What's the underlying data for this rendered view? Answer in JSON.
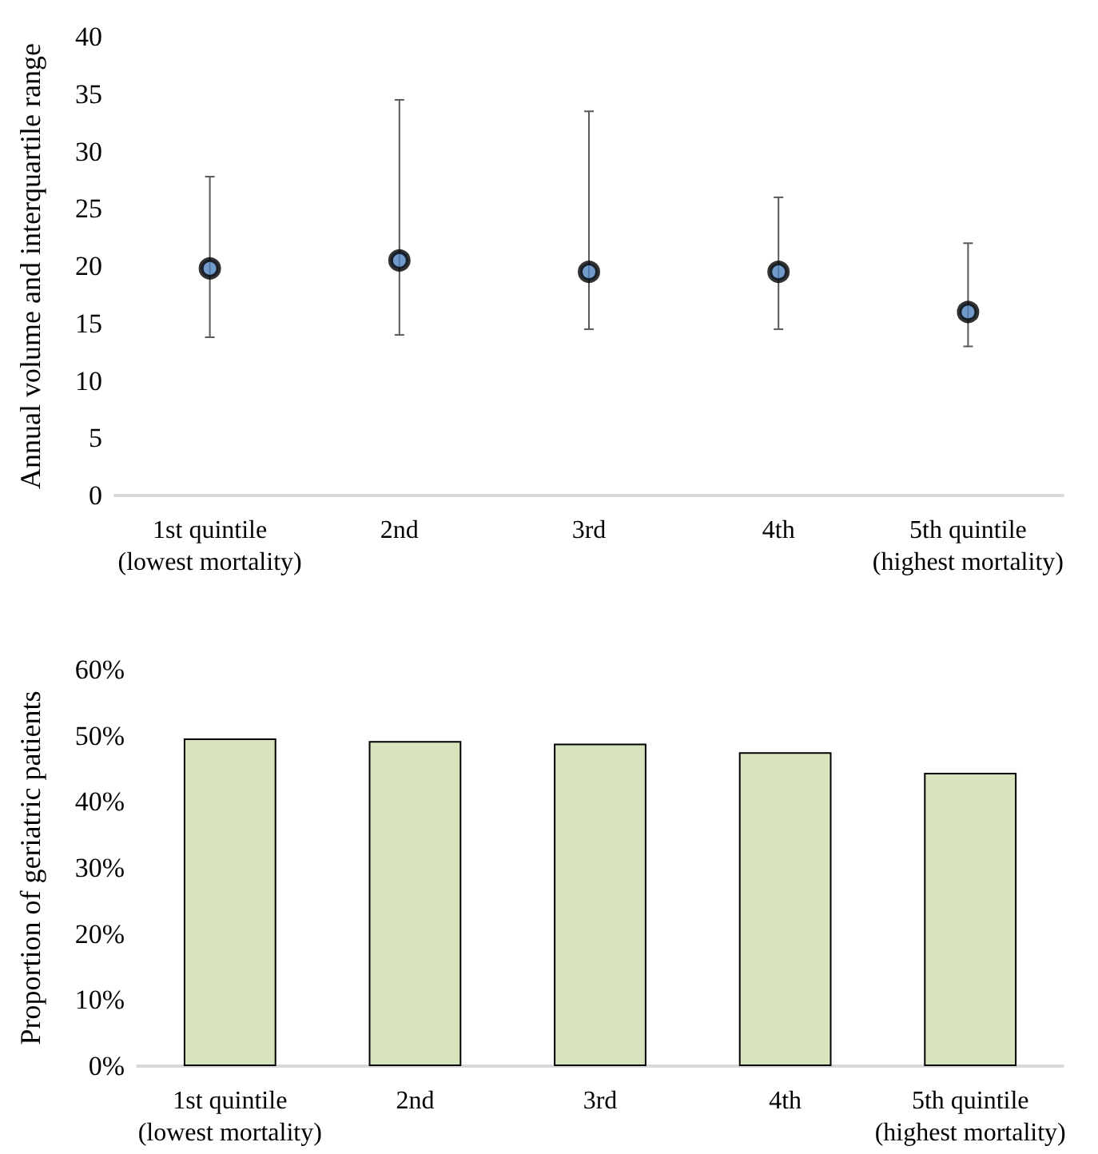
{
  "chart_data": [
    {
      "type": "scatter",
      "ylabel": "Annual volume and interquartile range",
      "categories": [
        "1st quintile\n(lowest mortality)",
        "2nd",
        "3rd",
        "4th",
        "5th quintile\n(highest mortality)"
      ],
      "series": [
        {
          "color": "#4f81bd",
          "values": [
            19.8,
            20.5,
            19.5,
            19.5,
            16
          ],
          "errors": [
            [
              13.8,
              27.8
            ],
            [
              14,
              34.5
            ],
            [
              14.5,
              33.5
            ],
            [
              14.5,
              26
            ],
            [
              13,
              22
            ]
          ]
        }
      ],
      "ylim": [
        0,
        40
      ],
      "yticks": [
        0,
        5,
        10,
        15,
        20,
        25,
        30,
        35,
        40
      ],
      "grid": false,
      "marker": "circle"
    },
    {
      "type": "bar",
      "ylabel": "Proportion of geriatric patients",
      "categories": [
        "1st quintile\n(lowest mortality)",
        "2nd",
        "3rd",
        "4th",
        "5th quintile\n(highest mortality)"
      ],
      "series": [
        {
          "color": "#d7e4bd",
          "values": [
            49.6,
            49.2,
            48.8,
            47.5,
            44.4
          ]
        }
      ],
      "ylim": [
        0,
        60
      ],
      "yticks": [
        {
          "value": 0,
          "label": "0%"
        },
        {
          "value": 10,
          "label": "10%"
        },
        {
          "value": 20,
          "label": "20%"
        },
        {
          "value": 30,
          "label": "30%"
        },
        {
          "value": 40,
          "label": "40%"
        },
        {
          "value": 50,
          "label": "50%"
        },
        {
          "value": 60,
          "label": "60%"
        }
      ],
      "grid": false
    }
  ]
}
